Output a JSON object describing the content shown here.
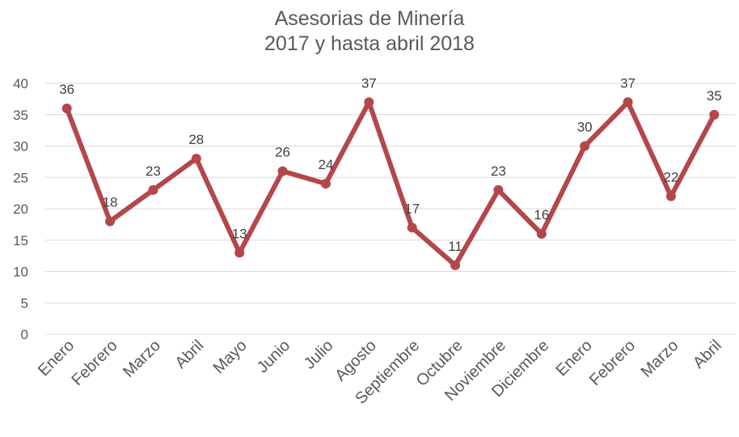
{
  "chart_data": {
    "type": "line",
    "title": [
      "Asesorias de Minería",
      "2017 y hasta abril 2018"
    ],
    "categories": [
      "Enero",
      "Febrero",
      "Marzo",
      "Abril",
      "Mayo",
      "Junio",
      "Julio",
      "Agosto",
      "Septiembre",
      "Octubre",
      "Noviembre",
      "Diciembre",
      "Enero",
      "Febrero",
      "Marzo",
      "Abril"
    ],
    "series": [
      {
        "values": [
          36,
          18,
          23,
          28,
          13,
          26,
          24,
          37,
          17,
          11,
          23,
          16,
          30,
          37,
          22,
          35
        ]
      }
    ],
    "ylim": [
      0,
      40
    ],
    "yticks": [
      0,
      5,
      10,
      15,
      20,
      25,
      30,
      35,
      40
    ],
    "grid": true,
    "data_labels": true,
    "line_color": "#b3474b"
  }
}
